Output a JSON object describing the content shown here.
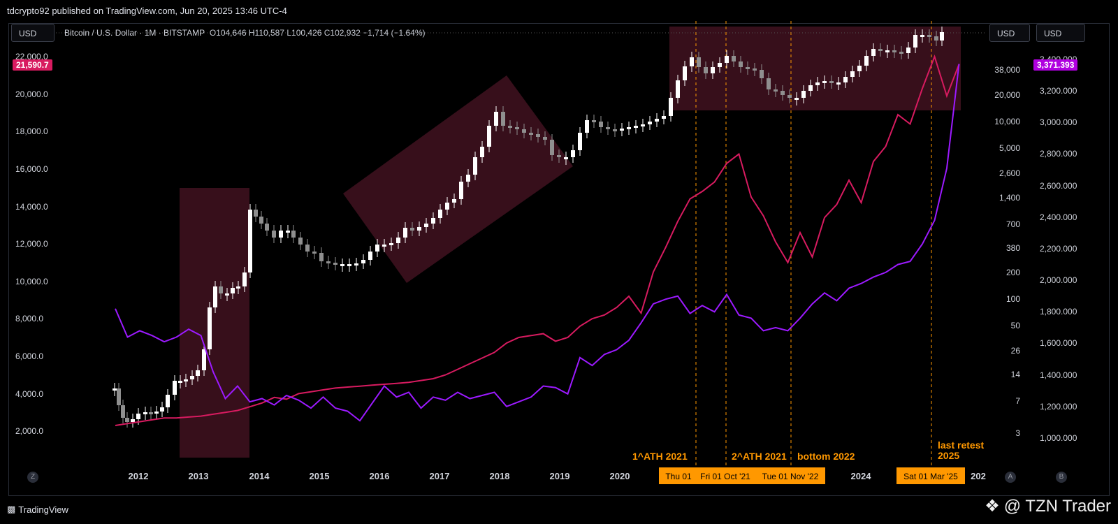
{
  "header": {
    "publisher": "tdcrypto92 published on TradingView.com, Jun 20, 2025 13:46 UTC-4"
  },
  "toolbar": {
    "left_currency": "USD",
    "right_currency_1": "USD",
    "right_currency_2": "USD"
  },
  "legend": {
    "symbol": "Bitcoin / U.S. Dollar · 1M · BITSTAMP",
    "ohlc": "O104,646  H110,587  L100,426  C102,932  −1,714 (−1.64%)"
  },
  "price_tags": {
    "left": "21,590.7",
    "right": "3,371.393"
  },
  "colors": {
    "candle_up": "#ffffff",
    "candle_down": "#8f8f8f",
    "pink_line": "#d81b60",
    "purple_line": "#9c1aff",
    "box_fill": "#4a1424",
    "vline": "#ff9800",
    "label_bg": "#ff9800"
  },
  "chart_data": {
    "type": "line",
    "title": "Bitcoin / U.S. Dollar · 1M · BITSTAMP",
    "x_ticks": [
      "2012",
      "2013",
      "2014",
      "2015",
      "2016",
      "2017",
      "2018",
      "2019",
      "2020",
      "2024",
      "202"
    ],
    "date_labels": [
      "Thu 01",
      "Fri 01 Oct '21",
      "Tue 01 Nov '22",
      "Sat 01 Mar '25"
    ],
    "left_axis_ticks": [
      "22,000.0",
      "20,000.0",
      "18,000.0",
      "16,000.0",
      "14,000.0",
      "12,000.0",
      "10,000.0",
      "8,000.0",
      "6,000.0",
      "4,000.0",
      "2,000.0"
    ],
    "mid_axis_ticks": [
      "38,000",
      "20,000",
      "10,000",
      "5,000",
      "2,600",
      "1,400",
      "700",
      "380",
      "200",
      "100",
      "50",
      "26",
      "14",
      "7",
      "3"
    ],
    "right_axis_ticks": [
      "3,400.000",
      "3,200.000",
      "3,000.000",
      "2,800.000",
      "2,600.000",
      "2,400.000",
      "2,200.000",
      "2,000.000",
      "1,800.000",
      "1,600.000",
      "1,400.000",
      "1,200.000",
      "1,000.000"
    ],
    "annotations": [
      "1^ATH 2021",
      "2^ATH 2021",
      "bottom 2022",
      "last retest\n2025"
    ],
    "series": [
      {
        "x": [
          2011.6,
          2011.8,
          2012.0,
          2012.2,
          2012.4,
          2012.6,
          2012.8,
          2013.0,
          2013.2,
          2013.4,
          2013.6,
          2013.8,
          2014.0,
          2014.2,
          2014.4,
          2014.6,
          2014.8,
          2015.0,
          2015.2,
          2015.4,
          2015.6,
          2015.8,
          2016.0,
          2016.2,
          2016.4,
          2016.6,
          2016.8,
          2017.0,
          2017.2,
          2017.4,
          2017.6,
          2017.8,
          2018.0,
          2018.2,
          2018.4,
          2018.6,
          2018.8,
          2019.0,
          2019.2,
          2019.4,
          2019.6,
          2019.8,
          2020.0,
          2020.2,
          2020.4,
          2020.6,
          2020.8,
          2021.0,
          2021.2,
          2021.4,
          2021.6,
          2021.8,
          2022.0,
          2022.2,
          2022.4,
          2022.6,
          2022.8,
          2023.0,
          2023.2,
          2023.4,
          2023.6,
          2023.8,
          2024.0,
          2024.2,
          2024.4,
          2024.6,
          2024.8,
          2025.0,
          2025.2,
          2025.4
        ],
        "y": [
          2300,
          2400,
          2500,
          2600,
          2700,
          2700,
          2750,
          2800,
          2900,
          3000,
          3100,
          3300,
          3500,
          3800,
          3700,
          4000,
          4100,
          4200,
          4300,
          4350,
          4400,
          4450,
          4500,
          4550,
          4600,
          4700,
          4800,
          5000,
          5300,
          5600,
          5900,
          6200,
          6700,
          7000,
          7100,
          7200,
          6800,
          7000,
          7600,
          8000,
          8200,
          8600,
          9200,
          8300,
          10500,
          11800,
          13200,
          14400,
          14800,
          15300,
          16300,
          16800,
          14500,
          13500,
          12100,
          11000,
          12600,
          11300,
          13400,
          14100,
          15400,
          14200,
          16400,
          17200,
          18900,
          18400,
          20300,
          22000,
          19900,
          21590.7
        ]
      },
      {
        "x": [
          2011.6,
          2011.8,
          2012.0,
          2012.2,
          2012.4,
          2012.6,
          2012.8,
          2013.0,
          2013.2,
          2013.4,
          2013.6,
          2013.8,
          2014.0,
          2014.2,
          2014.4,
          2014.6,
          2014.8,
          2015.0,
          2015.2,
          2015.4,
          2015.6,
          2015.8,
          2016.0,
          2016.2,
          2016.4,
          2016.6,
          2016.8,
          2017.0,
          2017.2,
          2017.4,
          2017.6,
          2017.8,
          2018.0,
          2018.2,
          2018.4,
          2018.6,
          2018.8,
          2019.0,
          2019.2,
          2019.4,
          2019.6,
          2019.8,
          2020.0,
          2020.2,
          2020.4,
          2020.6,
          2020.8,
          2021.0,
          2021.2,
          2021.4,
          2021.6,
          2021.8,
          2022.0,
          2022.2,
          2022.4,
          2022.6,
          2022.8,
          2023.0,
          2023.2,
          2023.4,
          2023.6,
          2023.8,
          2024.0,
          2024.2,
          2024.4,
          2024.6,
          2024.8,
          2025.0,
          2025.2,
          2025.4
        ],
        "y": [
          1820,
          1640,
          1680,
          1650,
          1610,
          1640,
          1690,
          1650,
          1420,
          1250,
          1330,
          1230,
          1250,
          1210,
          1270,
          1240,
          1190,
          1260,
          1190,
          1170,
          1110,
          1220,
          1330,
          1260,
          1290,
          1190,
          1260,
          1240,
          1290,
          1250,
          1270,
          1290,
          1200,
          1230,
          1260,
          1330,
          1320,
          1280,
          1510,
          1460,
          1530,
          1560,
          1620,
          1730,
          1850,
          1880,
          1900,
          1790,
          1840,
          1800,
          1910,
          1780,
          1760,
          1680,
          1700,
          1680,
          1760,
          1850,
          1920,
          1870,
          1950,
          1980,
          2020,
          2050,
          2100,
          2120,
          2230,
          2380,
          2710,
          3371.393
        ]
      }
    ]
  }
}
